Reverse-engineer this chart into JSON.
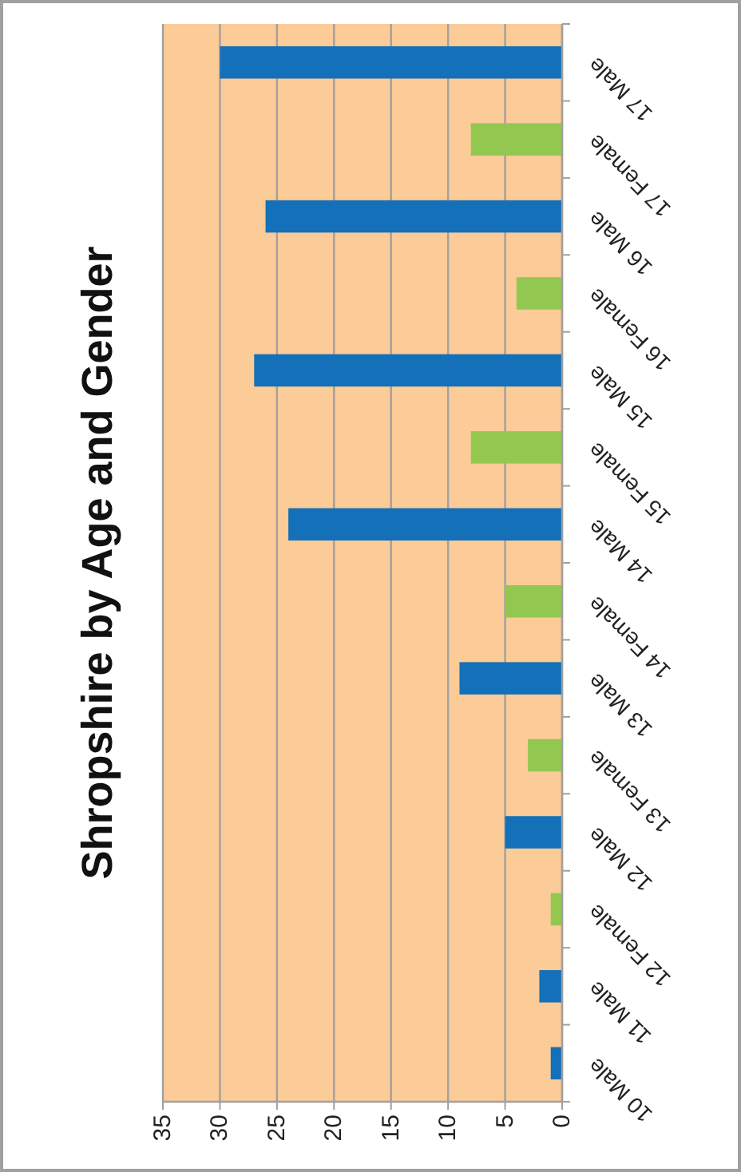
{
  "chart_data": {
    "type": "bar",
    "title": "Shropshire by Age and Gender",
    "orientation": "horizontal",
    "categories": [
      "17 Male",
      "17 Female",
      "16 Male",
      "16 Female",
      "15 Male",
      "15 Female",
      "14 Male",
      "14 Female",
      "13 Male",
      "13 Female",
      "12 Male",
      "12 Female",
      "11 Male",
      "10 Male"
    ],
    "values": [
      30,
      8,
      26,
      4,
      27,
      8,
      24,
      5,
      9,
      3,
      5,
      1,
      2,
      1
    ],
    "colors": [
      "#1470b8",
      "#92c850",
      "#1470b8",
      "#92c850",
      "#1470b8",
      "#92c850",
      "#1470b8",
      "#92c850",
      "#1470b8",
      "#92c850",
      "#1470b8",
      "#92c850",
      "#1470b8",
      "#1470b8"
    ],
    "xlim": [
      35,
      0
    ],
    "xticks": [
      35,
      30,
      25,
      20,
      15,
      10,
      5,
      0
    ],
    "grid": "x"
  }
}
